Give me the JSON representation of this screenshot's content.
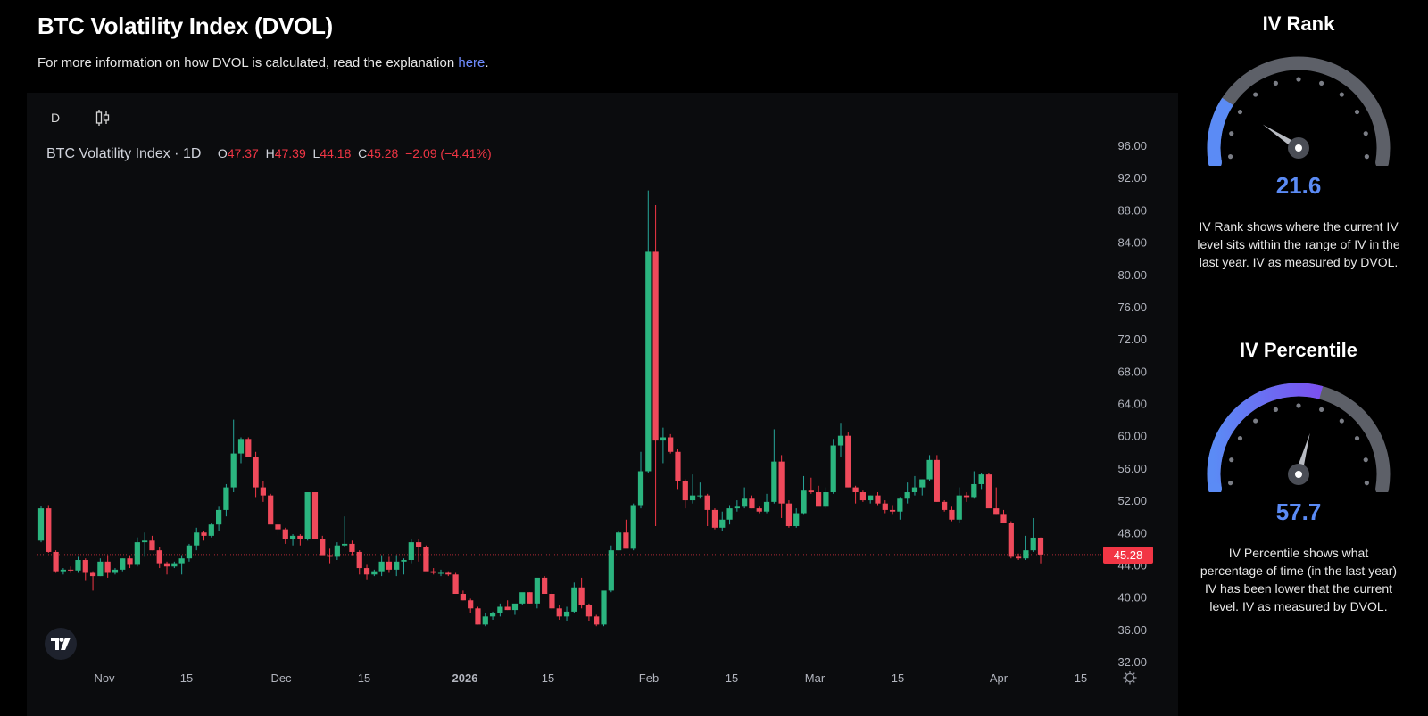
{
  "header": {
    "title": "BTC Volatility Index (DVOL)",
    "subtitle_prefix": "For more information on how DVOL is calculated, read the explanation ",
    "subtitle_link": "here",
    "subtitle_suffix": "."
  },
  "toolbar": {
    "interval": "D",
    "chart_type_icon": "candlestick-icon"
  },
  "legend": {
    "symbol": "BTC Volatility Index · 1D",
    "o_label": "O",
    "o_value": "47.37",
    "h_label": "H",
    "h_value": "47.39",
    "l_label": "L",
    "l_value": "44.18",
    "c_label": "C",
    "c_value": "45.28",
    "change": "−2.09 (−4.41%)"
  },
  "price_tag": "45.28",
  "colors": {
    "up": "#26a69a",
    "up_body": "#2bb57f",
    "down": "#f23645",
    "down_body": "#ef4a5b",
    "accent": "#5b8bf5",
    "gauge_track": "#5d6068",
    "gauge_violet": "#7b4ff0"
  },
  "gauges": [
    {
      "title": "IV Rank",
      "value": "21.6",
      "percent": 21.6,
      "description": "IV Rank shows where the current IV level sits within the range of IV in the last year. IV as measured by DVOL."
    },
    {
      "title": "IV Percentile",
      "value": "57.7",
      "percent": 57.7,
      "description": "IV Percentile shows what percentage of time (in the last year) IV has been lower that the current level. IV as measured by DVOL."
    }
  ],
  "chart_data": {
    "type": "candlestick",
    "title": "BTC Volatility Index · 1D",
    "xlabel": "",
    "ylabel": "",
    "ylim": [
      32,
      96
    ],
    "y_ticks": [
      "96.00",
      "92.00",
      "88.00",
      "84.00",
      "80.00",
      "76.00",
      "72.00",
      "68.00",
      "64.00",
      "60.00",
      "56.00",
      "52.00",
      "48.00",
      "44.00",
      "40.00",
      "36.00",
      "32.00"
    ],
    "x_ticks": [
      {
        "label": "Nov",
        "x": 117
      },
      {
        "label": "15",
        "x": 209
      },
      {
        "label": "Dec",
        "x": 315
      },
      {
        "label": "15",
        "x": 408
      },
      {
        "label": "2026",
        "x": 521,
        "bold": true
      },
      {
        "label": "15",
        "x": 614
      },
      {
        "label": "Feb",
        "x": 727
      },
      {
        "label": "15",
        "x": 820
      },
      {
        "label": "Mar",
        "x": 913
      },
      {
        "label": "15",
        "x": 1006
      },
      {
        "label": "Apr",
        "x": 1119
      },
      {
        "label": "15",
        "x": 1211
      }
    ],
    "last_price": 45.28,
    "grid": false,
    "ohlc": [
      [
        47.0,
        51.3,
        46.8,
        51.0
      ],
      [
        51.0,
        51.4,
        45.5,
        45.6
      ],
      [
        45.6,
        45.8,
        43.0,
        43.2
      ],
      [
        43.2,
        43.6,
        42.8,
        43.4
      ],
      [
        43.4,
        43.8,
        43.0,
        43.3
      ],
      [
        43.3,
        45.0,
        43.0,
        44.6
      ],
      [
        44.6,
        44.8,
        42.0,
        43.0
      ],
      [
        43.0,
        43.2,
        40.8,
        42.6
      ],
      [
        42.6,
        44.8,
        42.6,
        44.4
      ],
      [
        44.4,
        45.2,
        42.4,
        43.0
      ],
      [
        43.0,
        43.6,
        42.8,
        43.4
      ],
      [
        43.4,
        44.8,
        43.2,
        44.8
      ],
      [
        44.8,
        45.2,
        43.6,
        44.0
      ],
      [
        44.0,
        47.4,
        43.8,
        46.8
      ],
      [
        46.8,
        48.0,
        45.0,
        47.0
      ],
      [
        47.0,
        47.6,
        45.8,
        45.8
      ],
      [
        45.8,
        46.2,
        43.6,
        44.2
      ],
      [
        44.2,
        44.4,
        42.8,
        43.8
      ],
      [
        43.8,
        44.4,
        43.6,
        44.2
      ],
      [
        44.2,
        45.2,
        42.8,
        44.8
      ],
      [
        44.8,
        46.6,
        44.4,
        46.4
      ],
      [
        46.4,
        48.6,
        45.8,
        48.0
      ],
      [
        48.0,
        48.2,
        47.0,
        47.6
      ],
      [
        47.6,
        49.2,
        47.4,
        49.0
      ],
      [
        49.0,
        51.2,
        48.2,
        50.8
      ],
      [
        50.8,
        54.0,
        50.0,
        53.6
      ],
      [
        53.6,
        62.0,
        53.0,
        57.8
      ],
      [
        57.8,
        59.8,
        56.6,
        59.6
      ],
      [
        59.6,
        59.8,
        57.6,
        57.4
      ],
      [
        57.4,
        58.0,
        52.4,
        53.6
      ],
      [
        53.6,
        54.4,
        51.8,
        52.6
      ],
      [
        52.6,
        52.8,
        49.2,
        49.0
      ],
      [
        49.0,
        49.6,
        47.6,
        48.4
      ],
      [
        48.4,
        48.6,
        46.6,
        47.2
      ],
      [
        47.2,
        47.8,
        46.4,
        47.6
      ],
      [
        47.6,
        47.8,
        46.4,
        47.2
      ],
      [
        47.2,
        53.0,
        47.0,
        53.0
      ],
      [
        53.0,
        53.0,
        47.4,
        47.2
      ],
      [
        47.2,
        47.6,
        45.4,
        45.2
      ],
      [
        45.2,
        46.0,
        44.2,
        45.0
      ],
      [
        45.0,
        46.8,
        44.6,
        46.4
      ],
      [
        46.4,
        50.0,
        46.2,
        46.6
      ],
      [
        46.6,
        47.0,
        45.2,
        45.6
      ],
      [
        45.6,
        45.8,
        42.8,
        43.6
      ],
      [
        43.6,
        44.0,
        42.2,
        42.8
      ],
      [
        42.8,
        43.4,
        42.6,
        43.2
      ],
      [
        43.2,
        45.2,
        42.6,
        44.4
      ],
      [
        44.4,
        45.0,
        43.0,
        43.4
      ],
      [
        43.4,
        45.2,
        42.6,
        44.4
      ],
      [
        44.4,
        44.8,
        42.8,
        44.6
      ],
      [
        44.6,
        47.2,
        44.2,
        46.8
      ],
      [
        46.8,
        47.2,
        44.4,
        46.2
      ],
      [
        46.2,
        46.4,
        43.4,
        43.2
      ],
      [
        43.2,
        43.6,
        42.8,
        43.0
      ],
      [
        43.0,
        43.4,
        42.6,
        43.0
      ],
      [
        43.0,
        43.2,
        42.6,
        42.8
      ],
      [
        42.8,
        43.0,
        40.4,
        40.4
      ],
      [
        40.4,
        40.8,
        39.6,
        39.6
      ],
      [
        39.6,
        39.8,
        38.0,
        38.6
      ],
      [
        38.6,
        38.8,
        36.6,
        36.6
      ],
      [
        36.6,
        38.0,
        36.4,
        37.6
      ],
      [
        37.6,
        38.2,
        37.2,
        38.0
      ],
      [
        38.0,
        39.2,
        37.6,
        38.8
      ],
      [
        38.8,
        39.6,
        38.4,
        38.4
      ],
      [
        38.4,
        39.0,
        37.8,
        39.2
      ],
      [
        39.2,
        40.4,
        39.0,
        40.6
      ],
      [
        40.6,
        40.6,
        39.2,
        39.2
      ],
      [
        39.2,
        41.2,
        38.6,
        42.4
      ],
      [
        42.4,
        42.6,
        40.4,
        40.4
      ],
      [
        40.4,
        40.8,
        38.4,
        38.6
      ],
      [
        38.6,
        39.0,
        37.2,
        37.6
      ],
      [
        37.6,
        38.8,
        37.0,
        38.2
      ],
      [
        38.2,
        41.8,
        38.0,
        41.2
      ],
      [
        41.2,
        42.4,
        38.6,
        39.0
      ],
      [
        39.0,
        39.2,
        37.0,
        37.6
      ],
      [
        37.6,
        37.8,
        36.4,
        36.6
      ],
      [
        36.6,
        40.6,
        36.4,
        40.8
      ],
      [
        40.8,
        46.4,
        40.6,
        45.8
      ],
      [
        45.8,
        48.2,
        45.8,
        48.0
      ],
      [
        48.0,
        49.6,
        46.4,
        46.0
      ],
      [
        46.0,
        51.6,
        45.8,
        51.4
      ],
      [
        51.4,
        58.0,
        51.0,
        55.6
      ],
      [
        55.6,
        90.4,
        55.4,
        82.8
      ],
      [
        82.8,
        88.6,
        48.8,
        59.4
      ],
      [
        59.4,
        61.0,
        56.6,
        59.8
      ],
      [
        59.8,
        60.2,
        57.8,
        58.0
      ],
      [
        58.0,
        58.4,
        53.4,
        54.4
      ],
      [
        54.4,
        54.6,
        51.0,
        52.0
      ],
      [
        52.0,
        55.2,
        51.6,
        52.6
      ],
      [
        52.6,
        54.2,
        52.2,
        52.6
      ],
      [
        52.6,
        52.8,
        48.8,
        50.8
      ],
      [
        50.8,
        51.0,
        48.4,
        48.6
      ],
      [
        48.6,
        50.6,
        48.2,
        49.6
      ],
      [
        49.6,
        51.4,
        49.0,
        51.0
      ],
      [
        51.0,
        52.0,
        50.6,
        51.2
      ],
      [
        51.2,
        53.6,
        51.0,
        52.2
      ],
      [
        52.2,
        52.6,
        51.0,
        51.0
      ],
      [
        51.0,
        51.2,
        50.4,
        50.6
      ],
      [
        50.6,
        52.8,
        50.4,
        51.8
      ],
      [
        51.8,
        60.8,
        51.6,
        56.8
      ],
      [
        56.8,
        57.6,
        49.8,
        51.6
      ],
      [
        51.6,
        52.0,
        48.6,
        48.8
      ],
      [
        48.8,
        51.0,
        48.6,
        50.4
      ],
      [
        50.4,
        55.0,
        50.2,
        53.2
      ],
      [
        53.2,
        54.8,
        52.8,
        53.0
      ],
      [
        53.0,
        53.8,
        51.4,
        51.2
      ],
      [
        51.2,
        53.6,
        51.0,
        53.0
      ],
      [
        53.0,
        59.6,
        52.8,
        58.8
      ],
      [
        58.8,
        61.6,
        57.4,
        60.0
      ],
      [
        60.0,
        60.4,
        53.6,
        53.6
      ],
      [
        53.6,
        53.8,
        51.6,
        53.0
      ],
      [
        53.0,
        53.2,
        51.8,
        52.0
      ],
      [
        52.0,
        52.6,
        51.6,
        52.6
      ],
      [
        52.6,
        53.0,
        51.4,
        51.6
      ],
      [
        51.6,
        52.0,
        50.4,
        50.8
      ],
      [
        50.8,
        51.4,
        50.2,
        50.6
      ],
      [
        50.6,
        52.4,
        49.6,
        52.2
      ],
      [
        52.2,
        54.2,
        51.6,
        53.0
      ],
      [
        53.0,
        55.0,
        52.6,
        53.6
      ],
      [
        53.6,
        54.6,
        52.6,
        54.6
      ],
      [
        54.6,
        57.6,
        54.4,
        57.0
      ],
      [
        57.0,
        57.6,
        51.8,
        51.8
      ],
      [
        51.8,
        52.0,
        50.6,
        50.8
      ],
      [
        50.8,
        51.2,
        49.4,
        49.6
      ],
      [
        49.6,
        53.6,
        49.2,
        52.6
      ],
      [
        52.6,
        53.0,
        51.8,
        52.4
      ],
      [
        52.4,
        55.6,
        52.2,
        54.0
      ],
      [
        54.0,
        55.4,
        53.4,
        55.2
      ],
      [
        55.2,
        55.4,
        51.2,
        51.0
      ],
      [
        51.0,
        53.6,
        50.2,
        50.2
      ],
      [
        50.2,
        50.8,
        49.6,
        49.2
      ],
      [
        49.2,
        49.4,
        44.8,
        45.0
      ],
      [
        45.0,
        45.4,
        44.6,
        44.8
      ],
      [
        44.8,
        47.6,
        44.6,
        45.8
      ],
      [
        45.8,
        49.8,
        45.6,
        47.37
      ],
      [
        47.37,
        47.39,
        44.18,
        45.28
      ]
    ]
  }
}
